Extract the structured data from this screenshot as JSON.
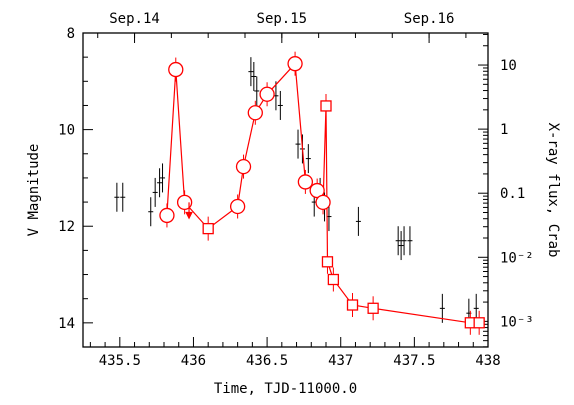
{
  "chart_data": {
    "type": "scatter",
    "xlabel": "Time, TJD-11000.0",
    "ylabel_left": "V Magnitude",
    "ylabel_right": "X-ray flux, Crab",
    "xlim": [
      435.25,
      438.0
    ],
    "ylim_left": [
      8,
      14.5
    ],
    "ylim_right_log10": [
      -3.4,
      1.5
    ],
    "x_ticks": [
      435.5,
      436,
      436.5,
      437,
      437.5,
      438
    ],
    "x_tick_labels": [
      "435.5",
      "436",
      "436.5",
      "437",
      "437.5",
      "438"
    ],
    "y_left_ticks": [
      8,
      10,
      12,
      14
    ],
    "y_left_tick_labels": [
      "8",
      "10",
      "12",
      "14"
    ],
    "y_right_ticks": [
      {
        "log10": 1,
        "label": "10"
      },
      {
        "log10": 0,
        "label": "1"
      },
      {
        "log10": -1,
        "label": "0.1"
      },
      {
        "log10": -2,
        "label": "10⁻²"
      },
      {
        "log10": -3,
        "label": "10⁻³"
      }
    ],
    "top_axis_dates": [
      {
        "label": "Sep.14",
        "x": 435.6
      },
      {
        "label": "Sep.15",
        "x": 436.6
      },
      {
        "label": "Sep.16",
        "x": 437.6
      }
    ],
    "series": [
      {
        "name": "Optical V magnitude",
        "style": "black points with error bars",
        "points": [
          {
            "x": 435.48,
            "y": 11.4,
            "err": 0.3
          },
          {
            "x": 435.52,
            "y": 11.4,
            "err": 0.3
          },
          {
            "x": 435.71,
            "y": 11.7,
            "err": 0.3
          },
          {
            "x": 435.74,
            "y": 11.3,
            "err": 0.3
          },
          {
            "x": 435.77,
            "y": 11.1,
            "err": 0.3
          },
          {
            "x": 435.79,
            "y": 11.0,
            "err": 0.3
          },
          {
            "x": 436.39,
            "y": 8.8,
            "err": 0.3
          },
          {
            "x": 436.41,
            "y": 8.9,
            "err": 0.3
          },
          {
            "x": 436.43,
            "y": 9.2,
            "err": 0.3
          },
          {
            "x": 436.56,
            "y": 9.3,
            "err": 0.3
          },
          {
            "x": 436.59,
            "y": 9.5,
            "err": 0.3
          },
          {
            "x": 436.71,
            "y": 10.3,
            "err": 0.3
          },
          {
            "x": 436.74,
            "y": 10.4,
            "err": 0.3
          },
          {
            "x": 436.78,
            "y": 10.6,
            "err": 0.3
          },
          {
            "x": 436.82,
            "y": 11.5,
            "err": 0.3
          },
          {
            "x": 436.86,
            "y": 11.3,
            "err": 0.3
          },
          {
            "x": 436.89,
            "y": 11.6,
            "err": 0.3
          },
          {
            "x": 436.92,
            "y": 11.8,
            "err": 0.3
          },
          {
            "x": 437.12,
            "y": 11.9,
            "err": 0.3
          },
          {
            "x": 437.39,
            "y": 12.3,
            "err": 0.3
          },
          {
            "x": 437.41,
            "y": 12.4,
            "err": 0.3
          },
          {
            "x": 437.43,
            "y": 12.3,
            "err": 0.3
          },
          {
            "x": 437.47,
            "y": 12.3,
            "err": 0.3
          },
          {
            "x": 437.69,
            "y": 13.7,
            "err": 0.3
          },
          {
            "x": 437.87,
            "y": 13.8,
            "err": 0.3
          },
          {
            "x": 437.92,
            "y": 13.7,
            "err": 0.3
          }
        ]
      },
      {
        "name": "X-ray flux (circles)",
        "style": "red open circles connected by red line",
        "points": [
          {
            "x": 435.82,
            "y": 0.045
          },
          {
            "x": 435.88,
            "y": 8.5
          },
          {
            "x": 435.94,
            "y": 0.072
          },
          {
            "x": 436.3,
            "y": 0.062
          },
          {
            "x": 436.34,
            "y": 0.26
          },
          {
            "x": 436.42,
            "y": 1.8
          },
          {
            "x": 436.5,
            "y": 3.5
          },
          {
            "x": 436.69,
            "y": 10.5
          },
          {
            "x": 436.76,
            "y": 0.15
          },
          {
            "x": 436.84,
            "y": 0.11
          },
          {
            "x": 436.88,
            "y": 0.072
          }
        ]
      },
      {
        "name": "X-ray flux (squares)",
        "style": "red open squares connected by red line",
        "points": [
          {
            "x": 436.1,
            "y": 0.028
          },
          {
            "x": 436.9,
            "y": 2.3
          },
          {
            "x": 436.91,
            "y": 0.0085
          },
          {
            "x": 436.95,
            "y": 0.0045
          },
          {
            "x": 437.08,
            "y": 0.0018
          },
          {
            "x": 437.22,
            "y": 0.0016
          },
          {
            "x": 437.88,
            "y": 0.00095
          },
          {
            "x": 437.94,
            "y": 0.00095
          }
        ]
      },
      {
        "name": "Upper limit",
        "style": "red downward arrow",
        "points": [
          {
            "x": 435.97,
            "y": 0.072
          }
        ]
      }
    ]
  }
}
